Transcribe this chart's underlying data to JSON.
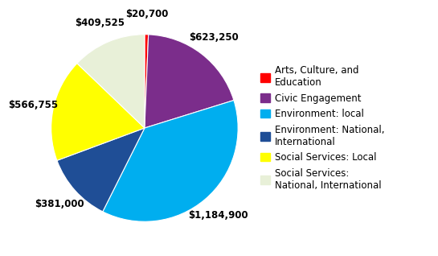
{
  "legend_labels": [
    "Arts, Culture, and\nEducation",
    "Civic Engagement",
    "Environment: local",
    "Environment: National,\nInternational",
    "Social Services: Local",
    "Social Services:\nNational, International"
  ],
  "values": [
    20700,
    623250,
    1184900,
    381000,
    566755,
    409525
  ],
  "colors": [
    "#FF0000",
    "#7B2D8B",
    "#00AEEF",
    "#1F4E96",
    "#FFFF00",
    "#E8F0D8"
  ],
  "labels": [
    "$20,700",
    "$623,250",
    "$1,184,900",
    "$381,000",
    "$566,755",
    "$409,525"
  ],
  "background_color": "#FFFFFF",
  "label_fontsize": 8.5,
  "legend_fontsize": 8.5
}
